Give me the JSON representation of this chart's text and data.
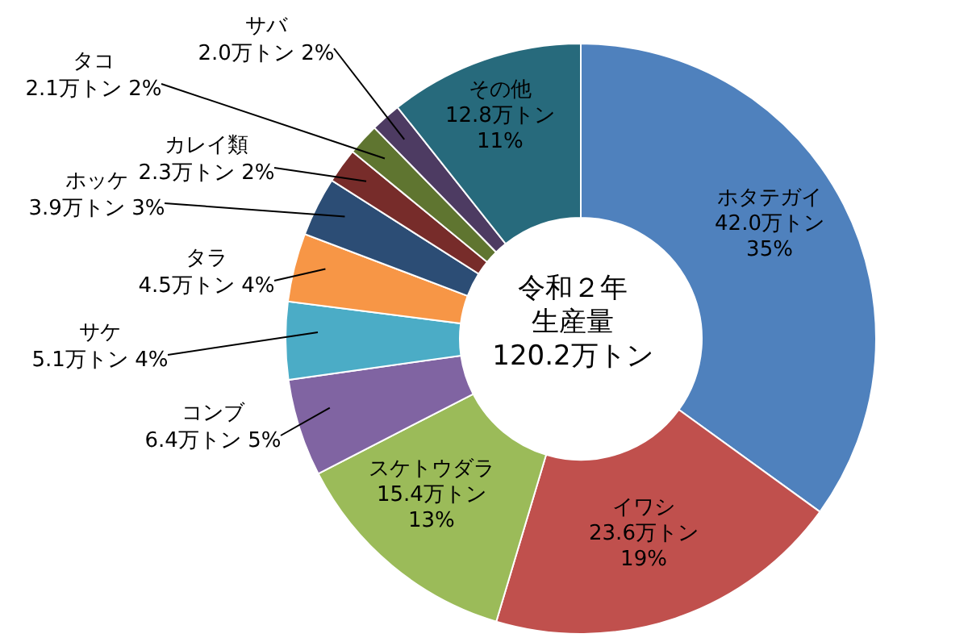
{
  "chart_data": {
    "type": "donut",
    "categories": [
      "ホタテガイ",
      "イワシ",
      "スケトウダラ",
      "コンブ",
      "サケ",
      "タラ",
      "ホッケ",
      "カレイ類",
      "タコ",
      "サバ",
      "その他"
    ],
    "values": [
      42.0,
      23.6,
      15.4,
      6.4,
      5.1,
      4.5,
      3.9,
      2.3,
      2.1,
      2.0,
      12.8
    ],
    "colors": [
      "#4f81bd",
      "#c0504d",
      "#9bbb59",
      "#8064a2",
      "#4bacc6",
      "#f79646",
      "#2c4d75",
      "#772c2a",
      "#5f7530",
      "#4d3b62",
      "#276a7c"
    ],
    "value_labels": [
      "42.0万トン 35%",
      "23.6万トン 19%",
      "15.4万トン 13%",
      "6.4万トン 5%",
      "5.1万トン 4%",
      "4.5万トン 4%",
      "3.9万トン 3%",
      "2.3万トン 2%",
      "2.1万トン 2%",
      "2.0万トン 2%",
      "12.8万トン 11%"
    ],
    "annotations": [
      "令和２年",
      "生産量",
      "120.2万トン"
    ]
  }
}
